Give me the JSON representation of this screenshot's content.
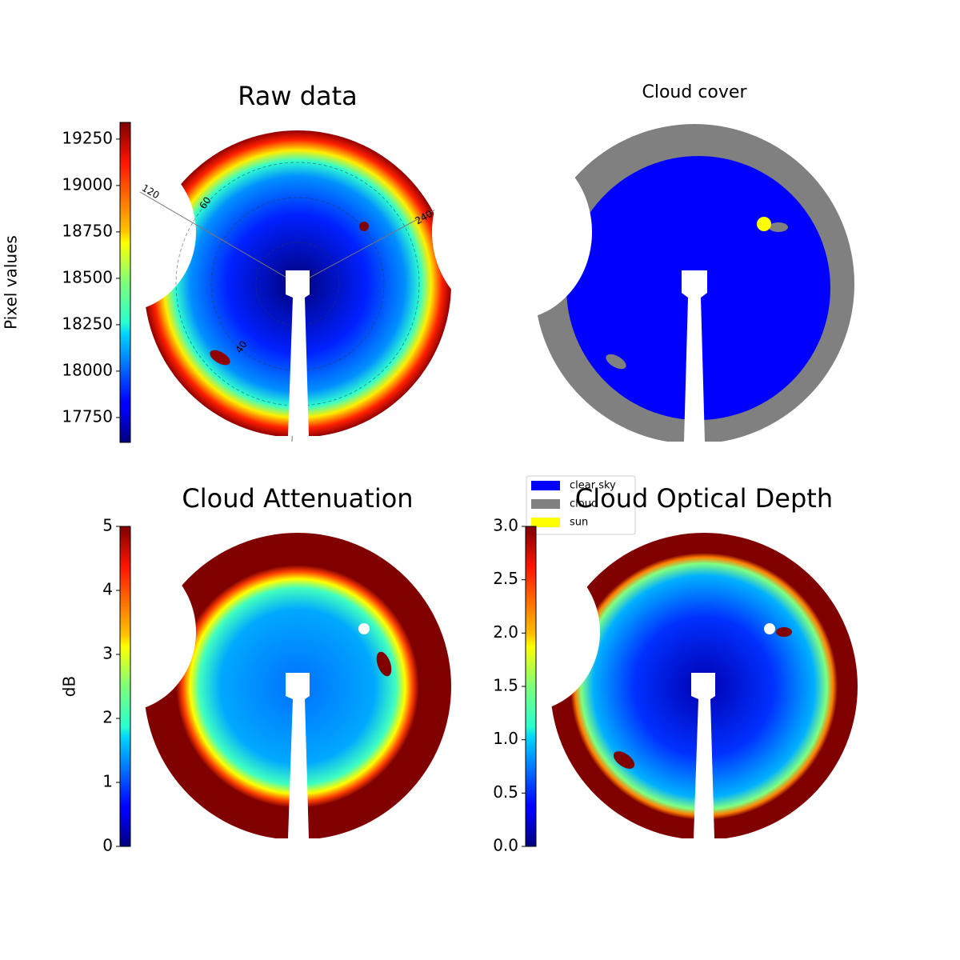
{
  "chart_data": [
    {
      "type": "image",
      "title": "Raw data",
      "colorbar_label": "Pixel values",
      "colormap": "jet",
      "ylim": [
        17616,
        19340
      ],
      "yticks": [
        17750,
        18000,
        18250,
        18500,
        18750,
        19000,
        19250
      ],
      "azimuth_ticks": [
        120,
        240
      ],
      "zenith_ticks": [
        60,
        40
      ]
    },
    {
      "type": "image",
      "title": "Cloud cover",
      "series": [
        {
          "name": "clear sky",
          "color": "#0000ff"
        },
        {
          "name": "cloud",
          "color": "#808080"
        },
        {
          "name": "sun",
          "color": "#ffff00"
        }
      ]
    },
    {
      "type": "image",
      "title": "Cloud Attenuation",
      "colorbar_label": "dB",
      "colormap": "jet",
      "ylim": [
        0,
        5
      ],
      "yticks": [
        0,
        1,
        2,
        3,
        4,
        5
      ]
    },
    {
      "type": "image",
      "title": "Cloud Optical Depth",
      "colormap": "jet",
      "ylim": [
        0,
        3
      ],
      "yticks": [
        {
          "value": 0,
          "label": "0.0"
        },
        0.5,
        {
          "value": 1,
          "label": "1.0"
        },
        1.5,
        {
          "value": 2,
          "label": "2.0"
        },
        2.5,
        {
          "value": 3,
          "label": "3.0"
        }
      ]
    }
  ]
}
